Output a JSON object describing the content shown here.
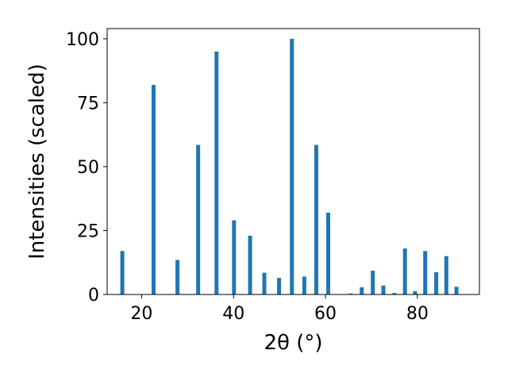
{
  "chart_data": {
    "type": "bar",
    "title": "",
    "xlabel": "2θ (°)",
    "ylabel": "Intensities (scaled)",
    "xlim": [
      12.5,
      93.5
    ],
    "ylim": [
      0,
      104
    ],
    "xticks": [
      "20",
      "40",
      "60",
      "80"
    ],
    "yticks": [
      "0",
      "25",
      "50",
      "75",
      "100"
    ],
    "grid": false,
    "bar_color": "#1f77b4",
    "series": [
      {
        "x": [
          15.8,
          22.6,
          27.8,
          32.3,
          36.3,
          40.1,
          43.6,
          46.7,
          49.9,
          52.7,
          55.4,
          58.0,
          60.6,
          65.5,
          67.9,
          70.3,
          72.6,
          75.0,
          77.3,
          79.5,
          81.7,
          84.1,
          86.3,
          88.5
        ],
        "values": [
          17,
          82,
          13.5,
          58.5,
          95,
          29,
          23,
          8.5,
          6.5,
          100,
          7,
          58.5,
          32,
          0.4,
          2.8,
          9.3,
          3.5,
          0.6,
          18,
          1.3,
          17,
          8.7,
          15,
          3
        ]
      }
    ]
  }
}
